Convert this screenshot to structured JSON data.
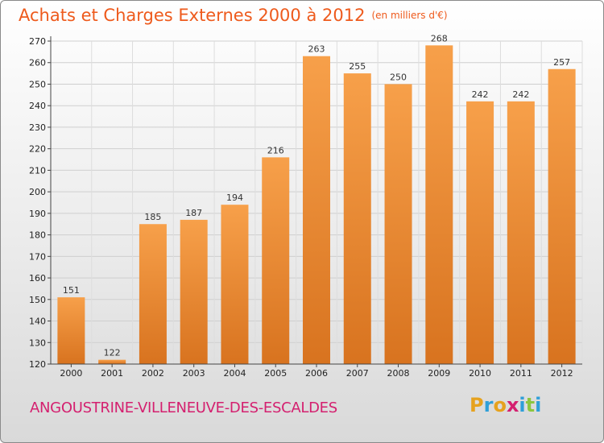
{
  "title": "Achats et Charges Externes 2000 à 2012",
  "unit": "(en milliers d'€)",
  "commune": "ANGOUSTRINE-VILLENEUVE-DES-ESCALDES",
  "logo": {
    "letters": [
      "P",
      "r",
      "o",
      "x",
      "i",
      "t",
      "i"
    ],
    "colors": [
      "#e6a21e",
      "#2f9fd8",
      "#e6a21e",
      "#d4206f",
      "#2f9fd8",
      "#8cc63f",
      "#2f9fd8"
    ]
  },
  "colors": {
    "bar_top": "#f7a04a",
    "bar_bottom": "#d8731f",
    "title": "#ee5a1c",
    "commune": "#d4206f"
  },
  "chart_data": {
    "type": "bar",
    "title": "Achats et Charges Externes 2000 à 2012",
    "subtitle": "(en milliers d'€)",
    "categories": [
      "2000",
      "2001",
      "2002",
      "2003",
      "2004",
      "2005",
      "2006",
      "2007",
      "2008",
      "2009",
      "2010",
      "2011",
      "2012"
    ],
    "values": [
      151,
      122,
      185,
      187,
      194,
      216,
      263,
      255,
      250,
      268,
      242,
      242,
      257
    ],
    "ylim": [
      120,
      270
    ],
    "yticks": [
      120,
      130,
      140,
      150,
      160,
      170,
      180,
      190,
      200,
      210,
      220,
      230,
      240,
      250,
      260,
      270
    ],
    "grid": true,
    "data_labels": true
  }
}
